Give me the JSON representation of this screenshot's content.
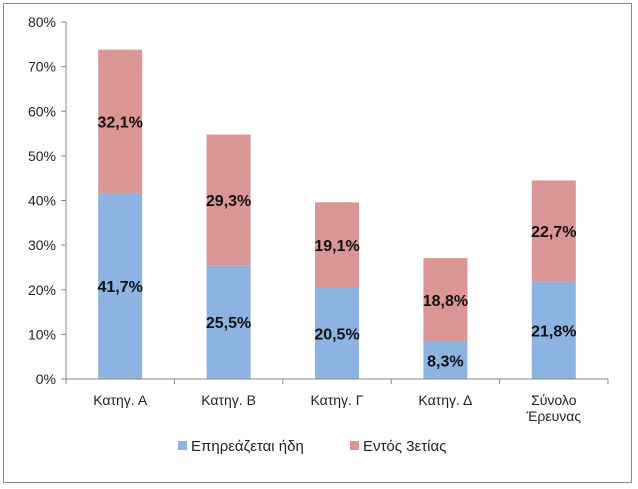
{
  "chart_data": {
    "type": "bar",
    "stacked": true,
    "categories": [
      [
        "Κατηγ. Α"
      ],
      [
        "Κατηγ. Β"
      ],
      [
        "Κατηγ. Γ"
      ],
      [
        "Κατηγ. Δ"
      ],
      [
        "Σύνολο",
        "Έρευνας"
      ]
    ],
    "series": [
      {
        "name": "Επηρεάζεται ήδη",
        "color": "#8db3e2",
        "values": [
          41.7,
          25.5,
          20.5,
          8.3,
          21.8
        ],
        "labels": [
          "41,7%",
          "25,5%",
          "20,5%",
          "8,3%",
          "21,8%"
        ]
      },
      {
        "name": "Εντός 3ετίας",
        "color": "#d99694",
        "values": [
          32.1,
          29.3,
          19.1,
          18.8,
          22.7
        ],
        "labels": [
          "32,1%",
          "29,3%",
          "19,1%",
          "18,8%",
          "22,7%"
        ]
      }
    ],
    "ylim": [
      0,
      80
    ],
    "yticks": [
      0,
      10,
      20,
      30,
      40,
      50,
      60,
      70,
      80
    ],
    "ytick_labels": [
      "0%",
      "10%",
      "20%",
      "30%",
      "40%",
      "50%",
      "60%",
      "70%",
      "80%"
    ],
    "grid": false,
    "legend_position": "bottom"
  }
}
